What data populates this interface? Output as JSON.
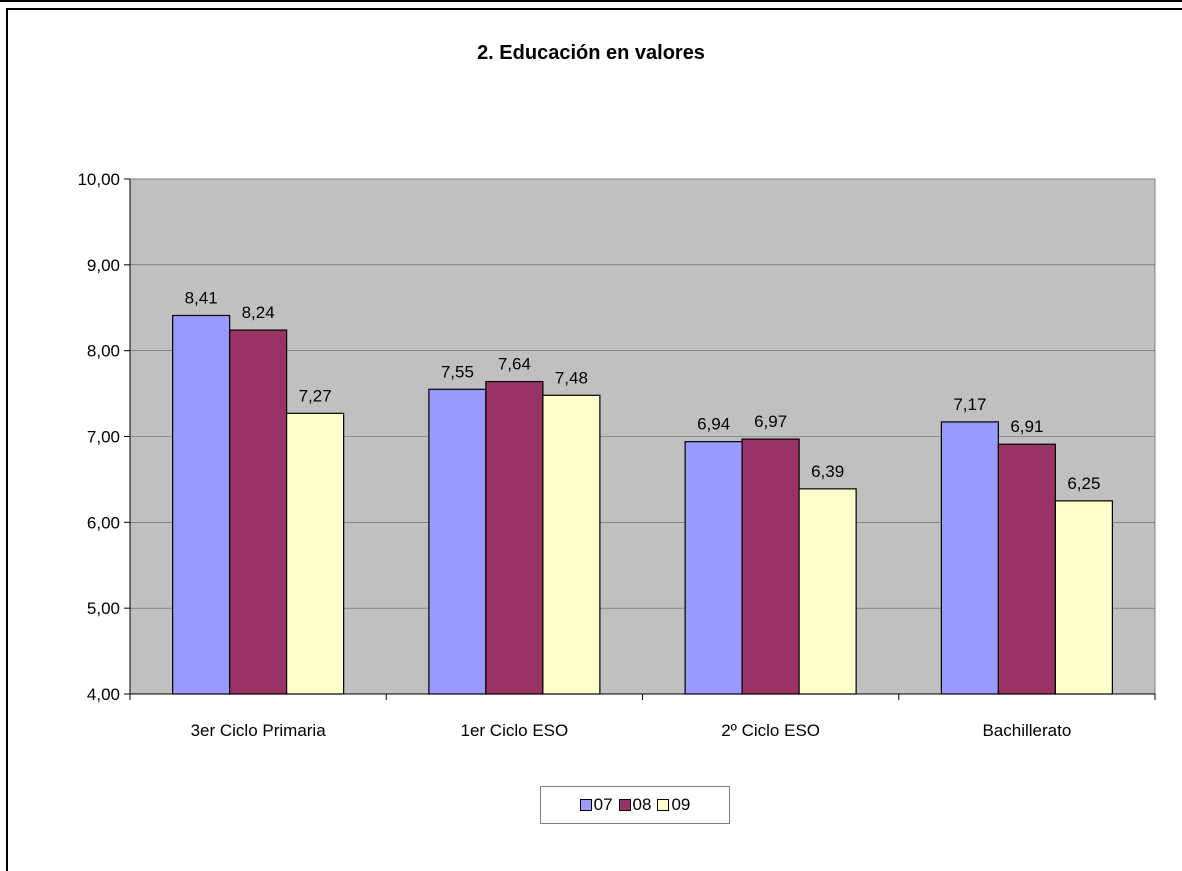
{
  "chart_data": {
    "type": "bar",
    "title": "2. Educación en valores",
    "categories": [
      "3er Ciclo Primaria",
      "1er Ciclo ESO",
      "2º Ciclo ESO",
      "Bachillerato"
    ],
    "series": [
      {
        "name": "07",
        "color": "#9999ff",
        "values": [
          8.41,
          7.55,
          6.94,
          7.17
        ],
        "labels": [
          "8,41",
          "7,55",
          "6,94",
          "7,17"
        ]
      },
      {
        "name": "08",
        "color": "#993366",
        "values": [
          8.24,
          7.64,
          6.97,
          6.91
        ],
        "labels": [
          "8,24",
          "7,64",
          "6,97",
          "6,91"
        ]
      },
      {
        "name": "09",
        "color": "#ffffcc",
        "values": [
          7.27,
          7.48,
          6.39,
          6.25
        ],
        "labels": [
          "7,27",
          "7,48",
          "6,39",
          "6,25"
        ]
      }
    ],
    "ylim": [
      4,
      10
    ],
    "yticks": [
      "4,00",
      "5,00",
      "6,00",
      "7,00",
      "8,00",
      "9,00",
      "10,00"
    ],
    "plot_background": "#c0c0c0",
    "grid": true,
    "legend": "bottom"
  }
}
